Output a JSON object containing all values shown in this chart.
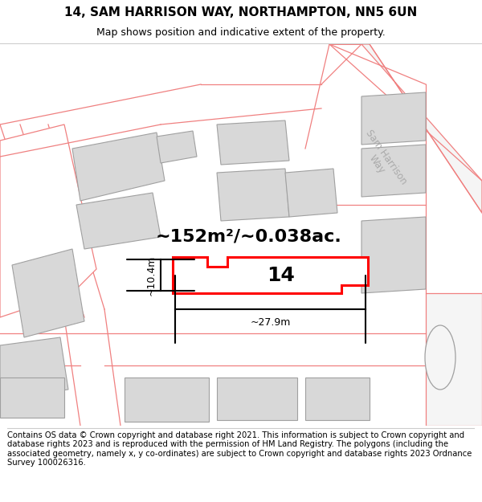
{
  "title": "14, SAM HARRISON WAY, NORTHAMPTON, NN5 6UN",
  "subtitle": "Map shows position and indicative extent of the property.",
  "footer": "Contains OS data © Crown copyright and database right 2021. This information is subject to Crown copyright and database rights 2023 and is reproduced with the permission of HM Land Registry. The polygons (including the associated geometry, namely x, y co-ordinates) are subject to Crown copyright and database rights 2023 Ordnance Survey 100026316.",
  "area_label": "~152m²/~0.038ac.",
  "width_label": "~27.9m",
  "height_label": "~10.4m",
  "number_label": "14",
  "bg_color": "#ffffff",
  "map_bg": "#ffffff",
  "highlight_color": "#ff0000",
  "building_color": "#d8d8d8",
  "building_edge": "#a0a0a0",
  "parcel_fill": "#ffffff",
  "parcel_edge": "#f08080",
  "street_label": "Sam Harrison\nWay",
  "title_fontsize": 11,
  "subtitle_fontsize": 9,
  "footer_fontsize": 7.2,
  "area_fontsize": 16,
  "number_fontsize": 18
}
